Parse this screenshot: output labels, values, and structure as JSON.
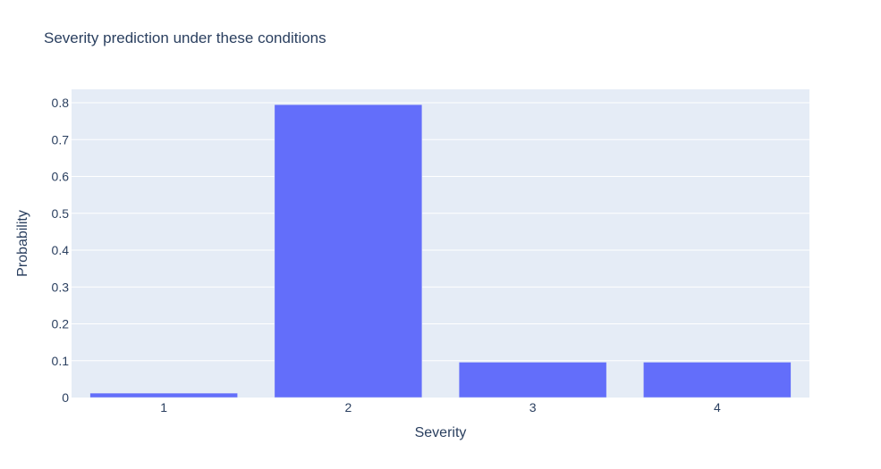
{
  "chart_data": {
    "type": "bar",
    "title": "Severity prediction under these conditions",
    "xlabel": "Severity",
    "ylabel": "Probability",
    "categories": [
      "1",
      "2",
      "3",
      "4"
    ],
    "values": [
      0.012,
      0.795,
      0.096,
      0.096
    ],
    "ylim": [
      0,
      0.8365
    ],
    "yticks": [
      "0",
      "0.1",
      "0.2",
      "0.3",
      "0.4",
      "0.5",
      "0.6",
      "0.7",
      "0.8"
    ],
    "grid": true,
    "colors": {
      "bar": "#636efa",
      "plot_bg": "#e5ecf6",
      "grid": "#ffffff",
      "text": "#2a3f5f"
    }
  }
}
